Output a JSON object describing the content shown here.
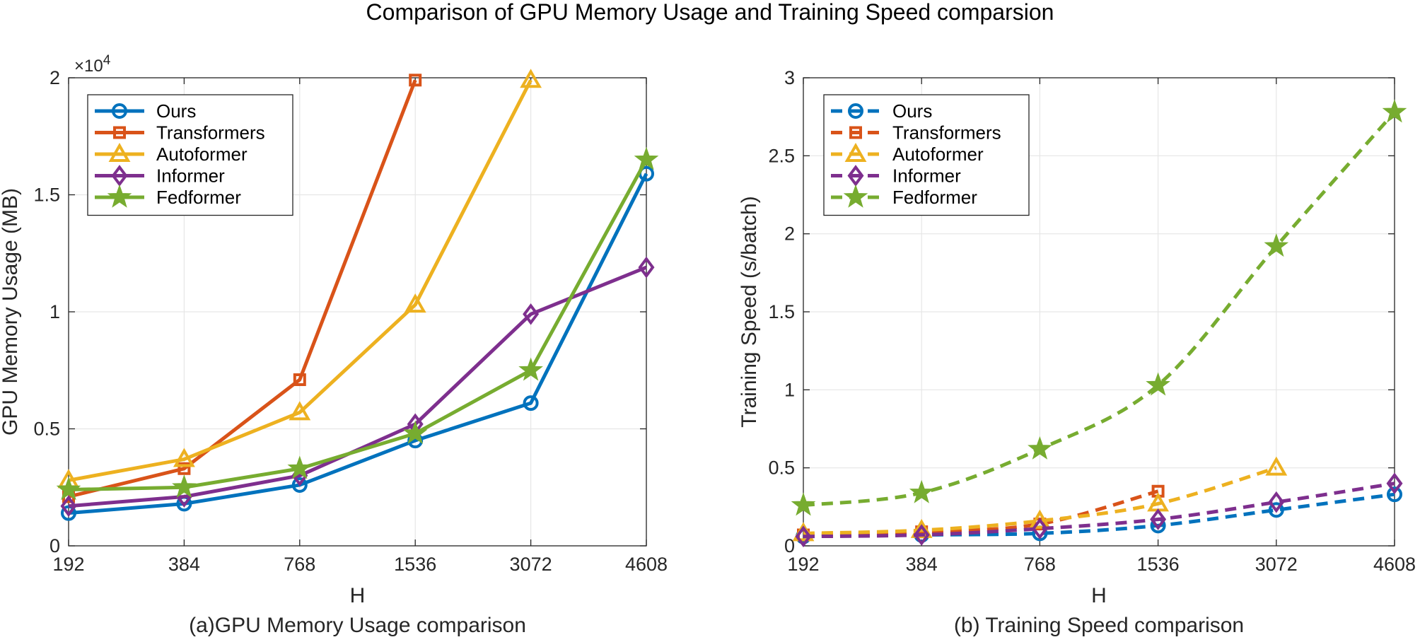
{
  "figure_title": "Comparison of GPU Memory Usage and Training Speed comparsion",
  "chart_data": [
    {
      "type": "line",
      "caption": "(a)GPU Memory Usage comparison",
      "xlabel": "H",
      "ylabel": "GPU Memory Usage (MB)",
      "categories": [
        "192",
        "384",
        "768",
        "1536",
        "3072",
        "4608"
      ],
      "ylim": [
        0,
        2
      ],
      "ytick_values": [
        0,
        0.5,
        1,
        1.5,
        2
      ],
      "yticks": [
        "0",
        "0.5",
        "1",
        "1.5",
        "2"
      ],
      "exponent_label": "×10",
      "exponent_power": "4",
      "grid": true,
      "legend_position": "top-left",
      "line_style": "solid",
      "series": [
        {
          "name": "Ours",
          "marker": "circle",
          "color": "#0072BD",
          "values": [
            0.14,
            0.18,
            0.26,
            0.45,
            0.61,
            1.59
          ]
        },
        {
          "name": "Transformers",
          "marker": "square",
          "color": "#D95319",
          "values": [
            0.21,
            0.33,
            0.71,
            1.99,
            null,
            null
          ]
        },
        {
          "name": "Autoformer",
          "marker": "triangle",
          "color": "#EDB120",
          "values": [
            0.28,
            0.37,
            0.57,
            1.03,
            1.99,
            null
          ]
        },
        {
          "name": "Informer",
          "marker": "diamond",
          "color": "#7E2F8E",
          "values": [
            0.17,
            0.21,
            0.3,
            0.52,
            0.99,
            1.19
          ]
        },
        {
          "name": "Fedformer",
          "marker": "star",
          "color": "#77AC30",
          "values": [
            0.24,
            0.25,
            0.33,
            0.48,
            0.75,
            1.65
          ]
        }
      ]
    },
    {
      "type": "line",
      "caption": "(b) Training Speed comparison",
      "xlabel": "H",
      "ylabel": "Training Speed (s/batch)",
      "categories": [
        "192",
        "384",
        "768",
        "1536",
        "3072",
        "4608"
      ],
      "ylim": [
        0,
        3
      ],
      "ytick_values": [
        0,
        0.5,
        1,
        1.5,
        2,
        2.5,
        3
      ],
      "yticks": [
        "0",
        "0.5",
        "1",
        "1.5",
        "2",
        "2.5",
        "3"
      ],
      "grid": true,
      "legend_position": "top-left",
      "line_style": "dashed",
      "series": [
        {
          "name": "Ours",
          "marker": "circle",
          "color": "#0072BD",
          "values": [
            0.06,
            0.07,
            0.08,
            0.13,
            0.23,
            0.33
          ]
        },
        {
          "name": "Transformers",
          "marker": "square",
          "color": "#D95319",
          "values": [
            0.07,
            0.09,
            0.14,
            0.35,
            null,
            null
          ]
        },
        {
          "name": "Autoformer",
          "marker": "triangle",
          "color": "#EDB120",
          "values": [
            0.08,
            0.1,
            0.16,
            0.27,
            0.5,
            null
          ]
        },
        {
          "name": "Informer",
          "marker": "diamond",
          "color": "#7E2F8E",
          "values": [
            0.06,
            0.07,
            0.11,
            0.17,
            0.28,
            0.4
          ]
        },
        {
          "name": "Fedformer",
          "marker": "star",
          "color": "#77AC30",
          "values": [
            0.26,
            0.34,
            0.62,
            1.03,
            1.92,
            2.78
          ]
        }
      ]
    }
  ]
}
